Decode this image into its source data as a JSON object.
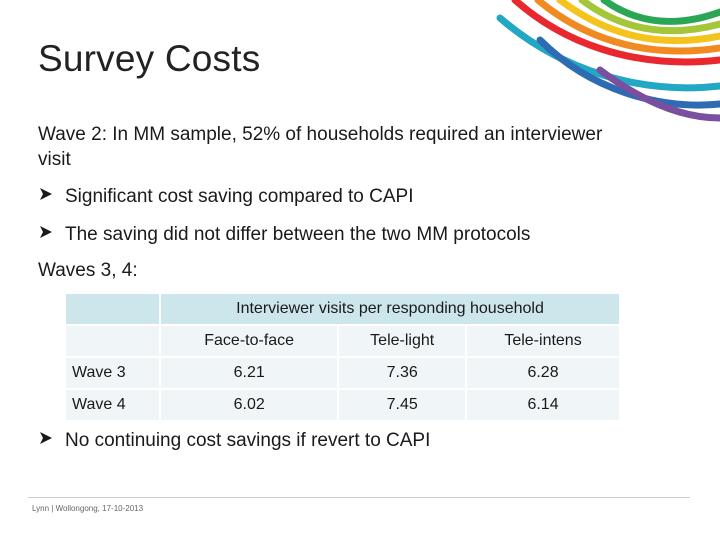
{
  "slide": {
    "title": "Survey Costs",
    "paragraph1": "Wave 2: In MM sample, 52% of households required an interviewer visit",
    "bullets_top": [
      "Significant cost saving compared to CAPI",
      "The saving did not differ between the two MM protocols"
    ],
    "paragraph2": "Waves 3, 4:",
    "bullet_bottom": "No continuing cost savings if revert to CAPI",
    "bullet_icon": "arrow-bullet-icon"
  },
  "table": {
    "group_header": "Interviewer visits per responding household",
    "columns": [
      "Face-to-face",
      "Tele-light",
      "Tele-intens"
    ],
    "rows": [
      {
        "label": "Wave 3",
        "values": [
          "6.21",
          "7.36",
          "6.28"
        ]
      },
      {
        "label": "Wave 4",
        "values": [
          "6.02",
          "7.45",
          "6.14"
        ]
      }
    ]
  },
  "footer": {
    "text": "Lynn | Wollongong, 17-10-2013"
  },
  "colors": {
    "header_fill": "#cce6ec",
    "cell_fill": "#f0f6f7",
    "arc_colors": [
      "#e8272e",
      "#f18a21",
      "#f4c41c",
      "#a4c73a",
      "#2aa654",
      "#22a7c4",
      "#2d6cb3",
      "#7b4fa0"
    ]
  }
}
